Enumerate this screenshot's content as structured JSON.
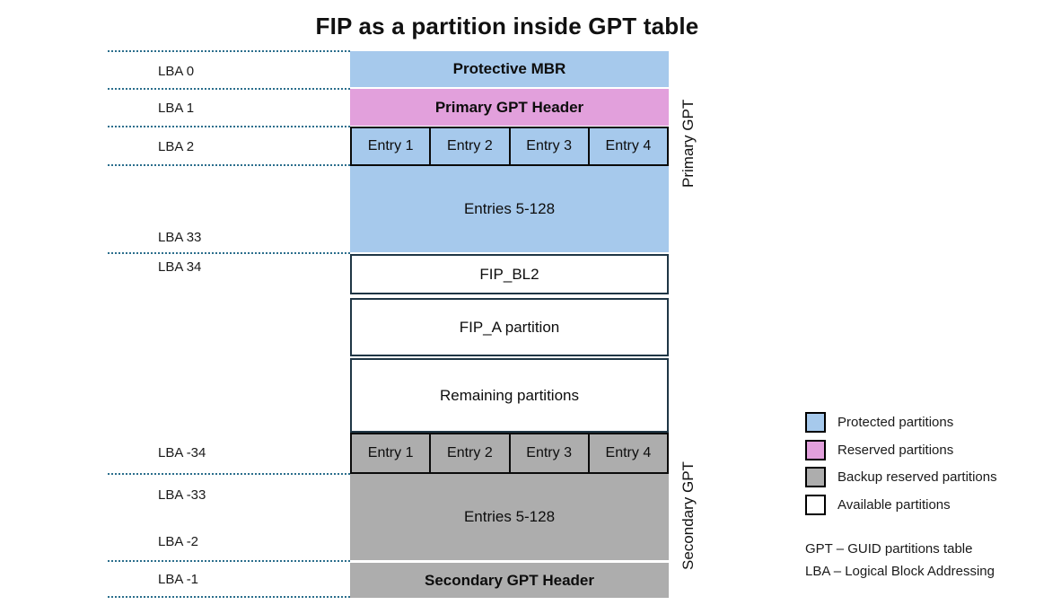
{
  "title": "FIP as a partition inside GPT table",
  "colors": {
    "protected": "#a6c9ec",
    "reserved": "#e2a0dc",
    "backup": "#adadad",
    "available": "#ffffff",
    "box_border": "#1f3645",
    "dotted_line": "#2b6e8c"
  },
  "lba_labels": [
    "LBA 0",
    "LBA 1",
    "LBA 2",
    "LBA 33",
    "LBA 34",
    "LBA -34",
    "LBA -33",
    "LBA -2",
    "LBA -1"
  ],
  "blocks": {
    "protective_mbr": "Protective MBR",
    "primary_gpt_header": "Primary GPT Header",
    "primary_entries": [
      "Entry 1",
      "Entry 2",
      "Entry 3",
      "Entry 4"
    ],
    "primary_entries_rest": "Entries 5-128",
    "fip_bl2": "FIP_BL2",
    "fip_a": "FIP_A partition",
    "remaining": "Remaining partitions",
    "secondary_entries": [
      "Entry 1",
      "Entry 2",
      "Entry 3",
      "Entry 4"
    ],
    "secondary_entries_rest": "Entries 5-128",
    "secondary_gpt_header": "Secondary GPT Header"
  },
  "side_labels": {
    "primary": "Primary GPT",
    "secondary": "Secondary GPT"
  },
  "legend": {
    "items": [
      {
        "label": "Protected partitions",
        "color": "#a6c9ec"
      },
      {
        "label": "Reserved partitions",
        "color": "#e2a0dc"
      },
      {
        "label": "Backup reserved partitions",
        "color": "#adadad"
      },
      {
        "label": "Available partitions",
        "color": "#ffffff"
      }
    ]
  },
  "notes": [
    "GPT – GUID partitions table",
    "LBA – Logical Block Addressing"
  ]
}
